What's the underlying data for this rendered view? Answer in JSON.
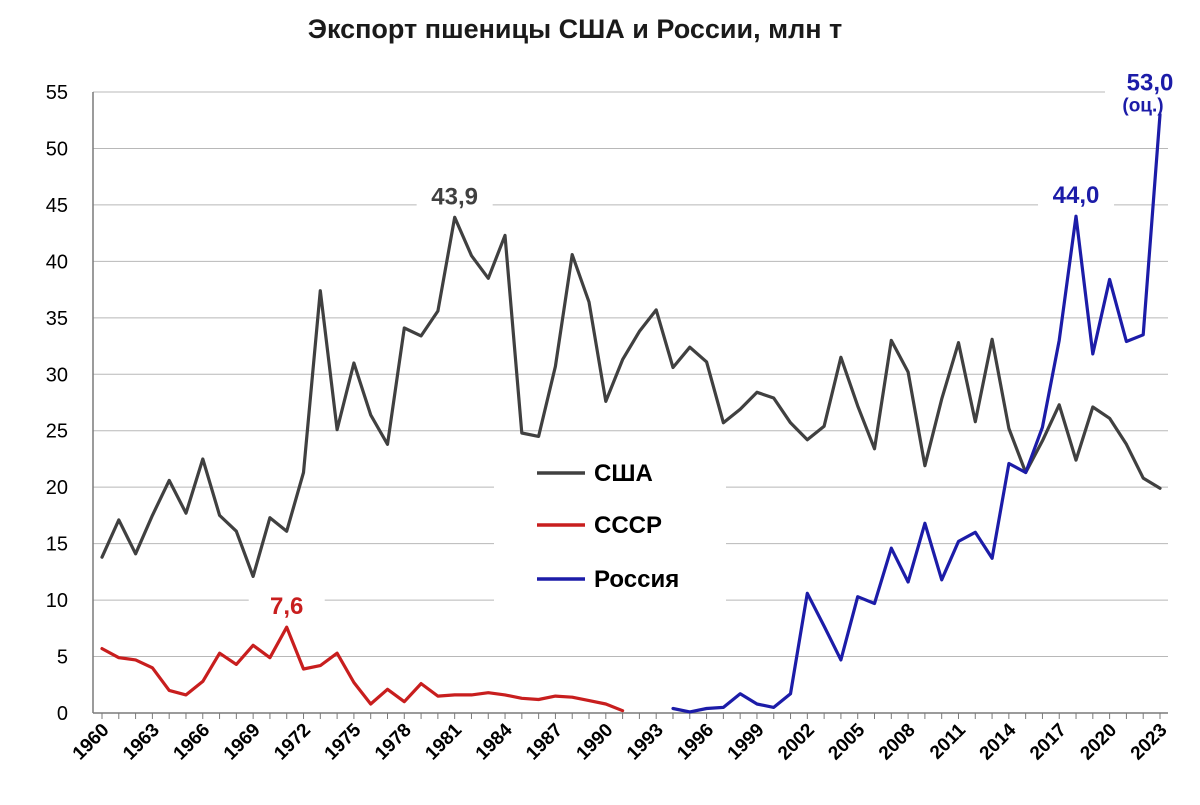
{
  "chart_data": {
    "type": "line",
    "title": "Экспорт пшеницы США и России, млн т",
    "xlabel": "",
    "ylabel": "",
    "ylim": [
      0,
      55
    ],
    "yticks": [
      "0",
      "5",
      "10",
      "15",
      "20",
      "25",
      "30",
      "35",
      "40",
      "45",
      "50",
      "55"
    ],
    "xlim": [
      1960,
      2023
    ],
    "xticks": [
      "1960",
      "1963",
      "1966",
      "1969",
      "1972",
      "1975",
      "1978",
      "1981",
      "1984",
      "1987",
      "1990",
      "1993",
      "1996",
      "1999",
      "2002",
      "2005",
      "2008",
      "2011",
      "2014",
      "2017",
      "2020",
      "2023"
    ],
    "grid": "horizontal",
    "legend_position": "center",
    "series": [
      {
        "name": "США",
        "color": "#404040",
        "x": [
          1960,
          1961,
          1962,
          1963,
          1964,
          1965,
          1966,
          1967,
          1968,
          1969,
          1970,
          1971,
          1972,
          1973,
          1974,
          1975,
          1976,
          1977,
          1978,
          1979,
          1980,
          1981,
          1982,
          1983,
          1984,
          1985,
          1986,
          1987,
          1988,
          1989,
          1990,
          1991,
          1992,
          1993,
          1994,
          1995,
          1996,
          1997,
          1998,
          1999,
          2000,
          2001,
          2002,
          2003,
          2004,
          2005,
          2006,
          2007,
          2008,
          2009,
          2010,
          2011,
          2012,
          2013,
          2014,
          2015,
          2016,
          2017,
          2018,
          2019,
          2020,
          2021,
          2022,
          2023
        ],
        "values": [
          13.8,
          17.1,
          14.1,
          17.5,
          20.6,
          17.7,
          22.5,
          17.5,
          16.1,
          12.1,
          17.3,
          16.1,
          21.3,
          37.4,
          25.1,
          31.0,
          26.4,
          23.8,
          34.1,
          33.4,
          35.6,
          43.9,
          40.5,
          38.5,
          42.3,
          24.8,
          24.5,
          30.7,
          40.6,
          36.4,
          27.6,
          31.3,
          33.8,
          35.7,
          30.6,
          32.4,
          31.1,
          25.7,
          26.9,
          28.4,
          27.9,
          25.7,
          24.2,
          25.4,
          31.5,
          27.2,
          23.4,
          33.0,
          30.2,
          21.9,
          27.8,
          32.8,
          25.8,
          33.1,
          25.2,
          21.3,
          24.1,
          27.3,
          22.4,
          27.1,
          26.1,
          23.8,
          20.8,
          19.9
        ]
      },
      {
        "name": "СССР",
        "color": "#c81e1e",
        "x": [
          1960,
          1961,
          1962,
          1963,
          1964,
          1965,
          1966,
          1967,
          1968,
          1969,
          1970,
          1971,
          1972,
          1973,
          1974,
          1975,
          1976,
          1977,
          1978,
          1979,
          1980,
          1981,
          1982,
          1983,
          1984,
          1985,
          1986,
          1987,
          1988,
          1989,
          1990,
          1991
        ],
        "values": [
          5.7,
          4.9,
          4.7,
          4.0,
          2.0,
          1.6,
          2.8,
          5.3,
          4.3,
          6.0,
          4.9,
          7.6,
          3.9,
          4.2,
          5.3,
          2.7,
          0.8,
          2.1,
          1.0,
          2.6,
          1.5,
          1.6,
          1.6,
          1.8,
          1.6,
          1.3,
          1.2,
          1.5,
          1.4,
          1.1,
          0.8,
          0.2
        ]
      },
      {
        "name": "Россия",
        "color": "#1c1ca8",
        "x": [
          1994,
          1995,
          1996,
          1997,
          1998,
          1999,
          2000,
          2001,
          2002,
          2003,
          2004,
          2005,
          2006,
          2007,
          2008,
          2009,
          2010,
          2011,
          2012,
          2013,
          2014,
          2015,
          2016,
          2017,
          2018,
          2019,
          2020,
          2021,
          2022,
          2023
        ],
        "values": [
          0.4,
          0.1,
          0.4,
          0.5,
          1.7,
          0.8,
          0.5,
          1.7,
          10.6,
          7.7,
          4.7,
          10.3,
          9.7,
          14.6,
          11.6,
          16.8,
          11.8,
          15.2,
          16.0,
          13.7,
          22.1,
          21.3,
          25.3,
          33.0,
          44.0,
          31.8,
          38.4,
          32.9,
          33.5,
          53.0
        ]
      }
    ],
    "annotations": [
      {
        "series": "США",
        "x": 1981,
        "y": 43.9,
        "text": "43,9",
        "color": "#404040"
      },
      {
        "series": "СССР",
        "x": 1971,
        "y": 7.6,
        "text": "7,6",
        "color": "#c81e1e"
      },
      {
        "series": "Россия",
        "x": 2018,
        "y": 44.0,
        "text": "44,0",
        "color": "#1c1ca8"
      },
      {
        "series": "Россия",
        "x": 2023,
        "y": 53.0,
        "text": "53,0",
        "subtext": "(оц.)",
        "color": "#1c1ca8"
      }
    ]
  }
}
